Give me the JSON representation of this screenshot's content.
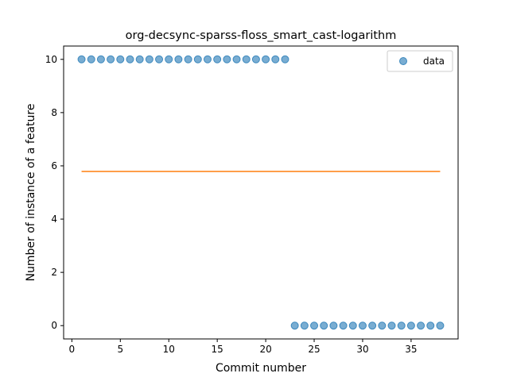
{
  "chart_data": {
    "type": "scatter",
    "title": "org-decsync-sparss-floss_smart_cast-logarithm",
    "xlabel": "Commit number",
    "ylabel": "Number of instance of a feature",
    "xlim": [
      -0.85,
      39.85
    ],
    "ylim": [
      -0.5,
      10.5
    ],
    "xticks": [
      0,
      5,
      10,
      15,
      20,
      25,
      30,
      35
    ],
    "yticks": [
      0,
      2,
      4,
      6,
      8,
      10
    ],
    "grid": false,
    "legend_position": "top-right",
    "series": [
      {
        "name": "data",
        "kind": "scatter",
        "color": "#1f77b4",
        "x": [
          1,
          2,
          3,
          4,
          5,
          6,
          7,
          8,
          9,
          10,
          11,
          12,
          13,
          14,
          15,
          16,
          17,
          18,
          19,
          20,
          21,
          22,
          23,
          24,
          25,
          26,
          27,
          28,
          29,
          30,
          31,
          32,
          33,
          34,
          35,
          36,
          37,
          38
        ],
        "y": [
          10,
          10,
          10,
          10,
          10,
          10,
          10,
          10,
          10,
          10,
          10,
          10,
          10,
          10,
          10,
          10,
          10,
          10,
          10,
          10,
          10,
          10,
          0,
          0,
          0,
          0,
          0,
          0,
          0,
          0,
          0,
          0,
          0,
          0,
          0,
          0,
          0,
          0
        ]
      },
      {
        "kind": "line",
        "color": "#ff7f0e",
        "x": [
          1,
          38
        ],
        "y": [
          5.79,
          5.79
        ]
      }
    ]
  }
}
